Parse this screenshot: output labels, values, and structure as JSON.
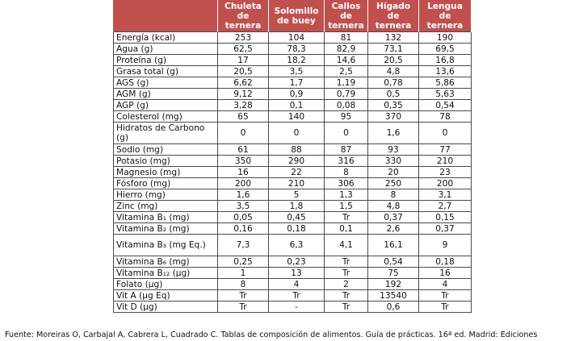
{
  "table": {
    "columns": [
      "",
      "Chuleta de ternera",
      "Solomillo de buey",
      "Callos de ternera",
      "Hígado de ternera",
      "Lengua de ternera"
    ],
    "rows": [
      {
        "nutrient": "Energía (kcal)",
        "values": [
          "253",
          "104",
          "81",
          "132",
          "190"
        ]
      },
      {
        "nutrient": "Agua (g)",
        "values": [
          "62,5",
          "78,3",
          "82,9",
          "73,1",
          "69,5"
        ]
      },
      {
        "nutrient": "Proteína (g)",
        "values": [
          "17",
          "18,2",
          "14,6",
          "20,5",
          "16,8"
        ]
      },
      {
        "nutrient": "Grasa total (g)",
        "values": [
          "20,5",
          "3,5",
          "2,5",
          "4,8",
          "13,6"
        ]
      },
      {
        "nutrient": "AGS (g)",
        "values": [
          "6,62",
          "1,7",
          "1,19",
          "0,78",
          "5,86"
        ]
      },
      {
        "nutrient": "AGM (g)",
        "values": [
          "9,12",
          "0,9",
          "0,79",
          "0,5",
          "5,63"
        ]
      },
      {
        "nutrient": "AGP (g)",
        "values": [
          "3,28",
          "0,1",
          "0,08",
          "0,35",
          "0,54"
        ]
      },
      {
        "nutrient": "Colesterol (mg)",
        "values": [
          "65",
          "140",
          "95",
          "370",
          "78"
        ]
      },
      {
        "nutrient": "Hidratos de Carbono (g)",
        "values": [
          "0",
          "0",
          "0",
          "1,6",
          "0"
        ]
      },
      {
        "nutrient": "Sodio (mg)",
        "values": [
          "61",
          "88",
          "87",
          "93",
          "77"
        ]
      },
      {
        "nutrient": "Potasio (mg)",
        "values": [
          "350",
          "290",
          "316",
          "330",
          "210"
        ]
      },
      {
        "nutrient": "Magnesio (mg)",
        "values": [
          "16",
          "22",
          "8",
          "20",
          "23"
        ]
      },
      {
        "nutrient": "Fósforo (mg)",
        "values": [
          "200",
          "210",
          "306",
          "250",
          "200"
        ]
      },
      {
        "nutrient": "Hierro (mg)",
        "values": [
          "1,6",
          "5",
          "1,3",
          "8",
          "3,1"
        ]
      },
      {
        "nutrient": "Zinc (mg)",
        "values": [
          "3,5",
          "1,8",
          "1,5",
          "4,8",
          "2,7"
        ]
      },
      {
        "nutrient": "Vitamina B₁ (mg)",
        "values": [
          "0,05",
          "0,45",
          "Tr",
          "0,37",
          "0,15"
        ]
      },
      {
        "nutrient": "Vitamina B₂ (mg)",
        "values": [
          "0,16",
          "0,18",
          "0,1",
          "2,6",
          "0,37"
        ]
      },
      {
        "nutrient": "Vitamina B₃ (mg Eq.)",
        "values": [
          "7,3",
          "6,3",
          "4,1",
          "16,1",
          "9"
        ]
      },
      {
        "nutrient": "Vitamina B₆ (mg)",
        "values": [
          "0,25",
          "0,23",
          "Tr",
          "0,54",
          "0,18"
        ]
      },
      {
        "nutrient": "Vitamina B₁₂ (µg)",
        "values": [
          "1",
          "13",
          "Tr",
          "75",
          "16"
        ]
      },
      {
        "nutrient": "Folato (µg)",
        "values": [
          "8",
          "4",
          "2",
          "192",
          "4"
        ]
      },
      {
        "nutrient": "Vit A (µg Eq)",
        "values": [
          "Tr",
          "Tr",
          "Tr",
          "13540",
          "Tr"
        ]
      },
      {
        "nutrient": "Vit D (µg)",
        "values": [
          "Tr",
          "-",
          "Tr",
          "0,6",
          "Tr"
        ]
      }
    ]
  },
  "source_note": "Fuente: Moreiras O, Carbajal A, Cabrera L, Cuadrado C. Tablas de composición de alimentos. Guía de prácticas. 16ª ed. Madrid: Ediciones"
}
